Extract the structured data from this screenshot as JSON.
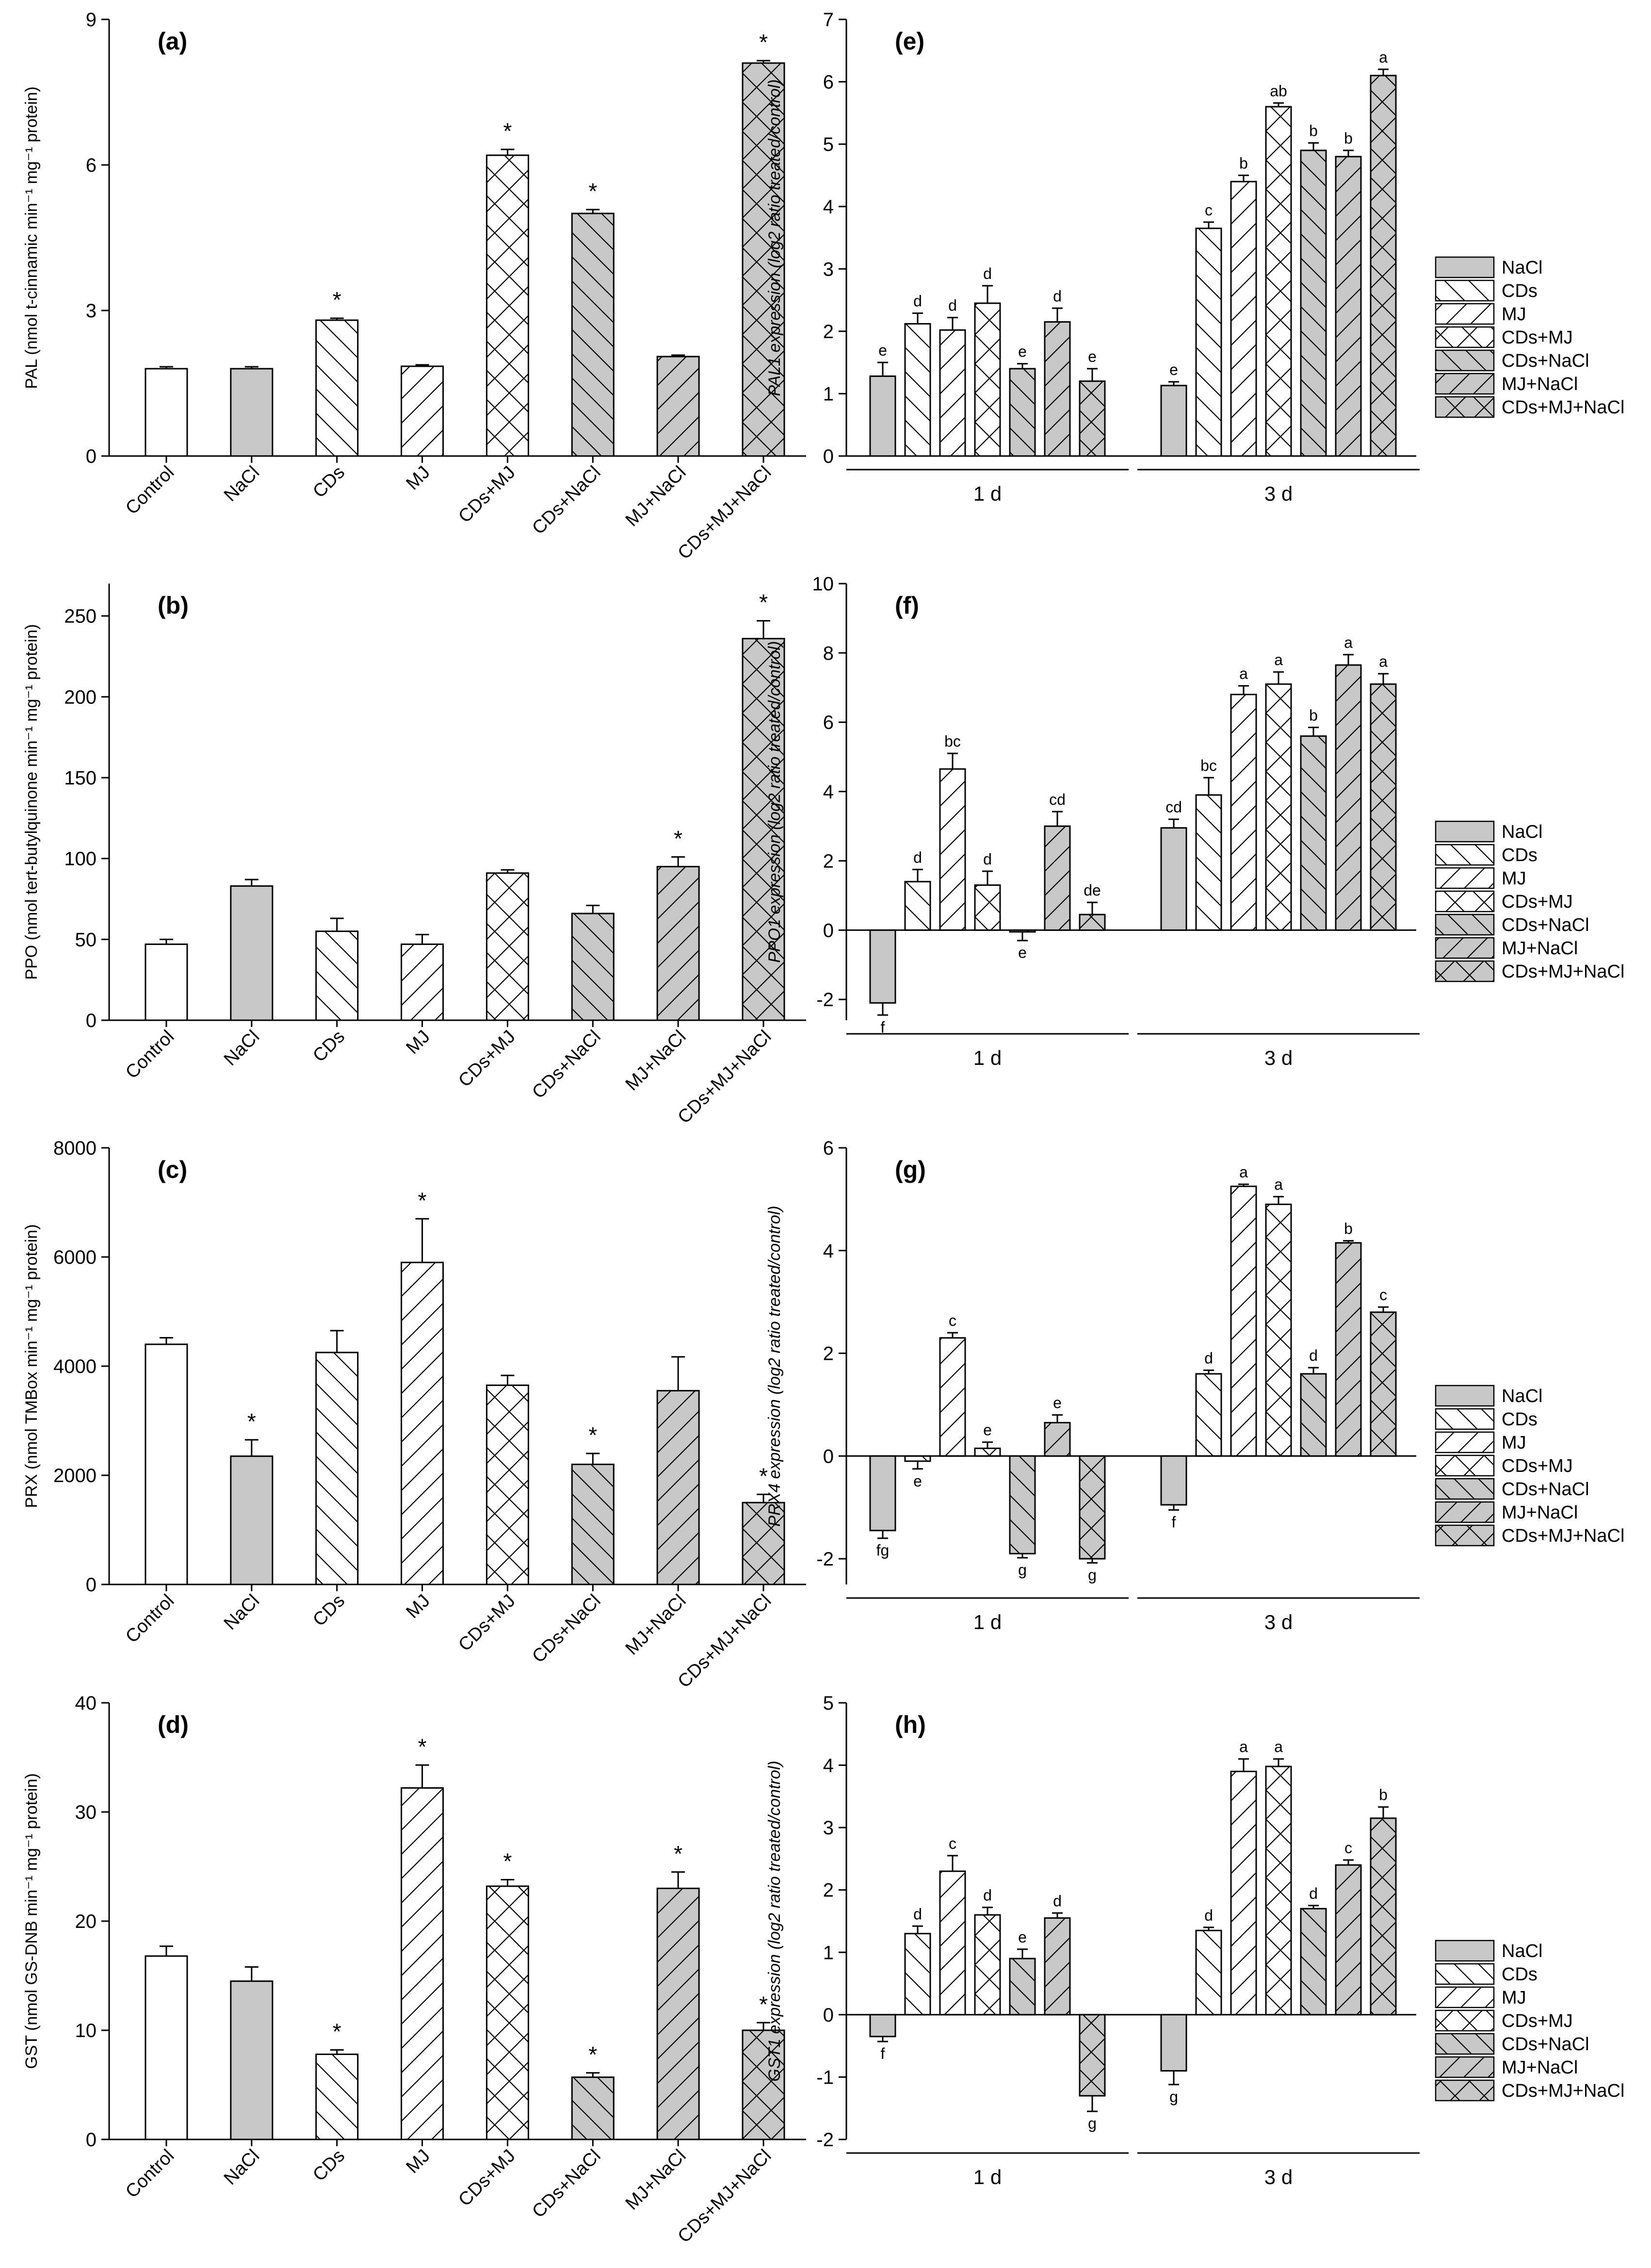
{
  "chart_data": [
    {
      "panel": "(a)",
      "type": "bar",
      "ylabel": "PAL (nmol t-cinnamic min⁻¹ mg⁻¹ protein)",
      "ylim": [
        0,
        9
      ],
      "yticks": [
        0,
        3,
        6,
        9
      ],
      "categories": [
        "Control",
        "NaCl",
        "CDs",
        "MJ",
        "CDs+MJ",
        "CDs+NaCl",
        "MJ+NaCl",
        "CDs+MJ+NaCl"
      ],
      "values": [
        1.8,
        1.8,
        2.8,
        1.85,
        6.2,
        5.0,
        2.05,
        8.1
      ],
      "errors": [
        0.04,
        0.04,
        0.04,
        0.03,
        0.12,
        0.08,
        0.03,
        0.05
      ],
      "markers": [
        "",
        "",
        "*",
        "",
        "*",
        "*",
        "",
        "*"
      ]
    },
    {
      "panel": "(b)",
      "type": "bar",
      "ylabel": "PPO (nmol tert-butylquinone min⁻¹ mg⁻¹ protein)",
      "ylim": [
        0,
        270
      ],
      "yticks": [
        0,
        50,
        100,
        150,
        200,
        250
      ],
      "categories": [
        "Control",
        "NaCl",
        "CDs",
        "MJ",
        "CDs+MJ",
        "CDs+NaCl",
        "MJ+NaCl",
        "CDs+MJ+NaCl"
      ],
      "values": [
        47,
        83,
        55,
        47,
        91,
        66,
        95,
        236
      ],
      "errors": [
        3,
        4,
        8,
        6,
        2,
        5,
        6,
        11
      ],
      "markers": [
        "",
        "",
        "",
        "",
        "",
        "",
        "*",
        "*"
      ]
    },
    {
      "panel": "(c)",
      "type": "bar",
      "ylabel": "PRX (nmol TMBox min⁻¹ mg⁻¹ protein)",
      "ylim": [
        0,
        8000
      ],
      "yticks": [
        0,
        2000,
        4000,
        6000,
        8000
      ],
      "categories": [
        "Control",
        "NaCl",
        "CDs",
        "MJ",
        "CDs+MJ",
        "CDs+NaCl",
        "MJ+NaCl",
        "CDs+MJ+NaCl"
      ],
      "values": [
        4400,
        2350,
        4250,
        5900,
        3650,
        2200,
        3550,
        1500
      ],
      "errors": [
        120,
        300,
        400,
        800,
        180,
        200,
        620,
        150
      ],
      "markers": [
        "",
        "*",
        "",
        "*",
        "",
        "*",
        "",
        "*"
      ]
    },
    {
      "panel": "(d)",
      "type": "bar",
      "ylabel": "GST (nmol GS-DNB min⁻¹ mg⁻¹ protein)",
      "ylim": [
        0,
        40
      ],
      "yticks": [
        0,
        10,
        20,
        30,
        40
      ],
      "categories": [
        "Control",
        "NaCl",
        "CDs",
        "MJ",
        "CDs+MJ",
        "CDs+NaCl",
        "MJ+NaCl",
        "CDs+MJ+NaCl"
      ],
      "values": [
        16.8,
        14.5,
        7.8,
        32.2,
        23.2,
        5.7,
        23.0,
        10.0
      ],
      "errors": [
        0.9,
        1.3,
        0.4,
        2.1,
        0.6,
        0.4,
        1.5,
        0.7
      ],
      "markers": [
        "",
        "",
        "*",
        "*",
        "*",
        "*",
        "*",
        "*"
      ]
    },
    {
      "panel": "(e)",
      "type": "bar",
      "ylabel": "PAL1 expression (log2 ratio treated/control)",
      "ylim": [
        0,
        7
      ],
      "yticks": [
        0,
        1,
        2,
        3,
        4,
        5,
        6,
        7
      ],
      "categories": [
        "1 d",
        "3 d"
      ],
      "series_names": [
        "NaCl",
        "CDs",
        "MJ",
        "CDs+MJ",
        "CDs+NaCl",
        "MJ+NaCl",
        "CDs+MJ+NaCl"
      ],
      "values": [
        [
          1.28,
          2.12,
          2.02,
          2.45,
          1.4,
          2.15,
          1.2
        ],
        [
          1.13,
          3.65,
          4.4,
          5.6,
          4.9,
          4.8,
          6.1
        ]
      ],
      "errors": [
        [
          0.22,
          0.17,
          0.2,
          0.28,
          0.08,
          0.22,
          0.2
        ],
        [
          0.06,
          0.1,
          0.1,
          0.06,
          0.12,
          0.1,
          0.1
        ]
      ],
      "letters": [
        [
          "e",
          "d",
          "d",
          "d",
          "e",
          "d",
          "e"
        ],
        [
          "e",
          "c",
          "b",
          "ab",
          "b",
          "b",
          "a"
        ]
      ]
    },
    {
      "panel": "(f)",
      "type": "bar",
      "ylabel": "PPO1 expression (log2 ratio treated/control)",
      "ylim": [
        -2.6,
        10
      ],
      "yticks": [
        -2,
        0,
        2,
        4,
        6,
        8,
        10
      ],
      "categories": [
        "1 d",
        "3 d"
      ],
      "series_names": [
        "NaCl",
        "CDs",
        "MJ",
        "CDs+MJ",
        "CDs+NaCl",
        "MJ+NaCl",
        "CDs+MJ+NaCl"
      ],
      "values": [
        [
          -2.1,
          1.4,
          4.65,
          1.3,
          -0.05,
          3.0,
          0.45
        ],
        [
          2.95,
          3.9,
          6.8,
          7.1,
          5.6,
          7.65,
          7.1
        ]
      ],
      "errors": [
        [
          0.35,
          0.35,
          0.45,
          0.4,
          0.25,
          0.42,
          0.35
        ],
        [
          0.25,
          0.5,
          0.25,
          0.35,
          0.25,
          0.3,
          0.3
        ]
      ],
      "letters": [
        [
          "f",
          "d",
          "bc",
          "d",
          "e",
          "cd",
          "de"
        ],
        [
          "cd",
          "bc",
          "a",
          "a",
          "b",
          "a",
          "a"
        ]
      ]
    },
    {
      "panel": "(g)",
      "type": "bar",
      "ylabel": "PRX4 expression (log2 ratio treated/control)",
      "ylim": [
        -2.5,
        6
      ],
      "yticks": [
        -2,
        0,
        2,
        4,
        6
      ],
      "categories": [
        "1 d",
        "3 d"
      ],
      "series_names": [
        "NaCl",
        "CDs",
        "MJ",
        "CDs+MJ",
        "CDs+NaCl",
        "MJ+NaCl",
        "CDs+MJ+NaCl"
      ],
      "values": [
        [
          -1.45,
          -0.1,
          2.3,
          0.15,
          -1.9,
          0.65,
          -2.0
        ],
        [
          -0.95,
          1.6,
          5.25,
          4.9,
          1.6,
          4.15,
          2.8
        ]
      ],
      "errors": [
        [
          0.15,
          0.15,
          0.1,
          0.12,
          0.08,
          0.15,
          0.08
        ],
        [
          0.1,
          0.07,
          0.04,
          0.15,
          0.12,
          0.04,
          0.1
        ]
      ],
      "letters": [
        [
          "fg",
          "e",
          "c",
          "e",
          "g",
          "e",
          "g"
        ],
        [
          "f",
          "d",
          "a",
          "a",
          "d",
          "b",
          "c"
        ]
      ]
    },
    {
      "panel": "(h)",
      "type": "bar",
      "ylabel": "GST1 expression (log2 ratio treated/control)",
      "ylim": [
        -2,
        5
      ],
      "yticks": [
        -2,
        -1,
        0,
        1,
        2,
        3,
        4,
        5
      ],
      "categories": [
        "1 d",
        "3 d"
      ],
      "series_names": [
        "NaCl",
        "CDs",
        "MJ",
        "CDs+MJ",
        "CDs+NaCl",
        "MJ+NaCl",
        "CDs+MJ+NaCl"
      ],
      "values": [
        [
          -0.35,
          1.3,
          2.3,
          1.6,
          0.9,
          1.55,
          -1.3
        ],
        [
          -0.9,
          1.35,
          3.9,
          3.98,
          1.7,
          2.4,
          3.15
        ]
      ],
      "errors": [
        [
          0.08,
          0.12,
          0.25,
          0.12,
          0.15,
          0.08,
          0.25
        ],
        [
          0.22,
          0.05,
          0.2,
          0.12,
          0.05,
          0.08,
          0.18
        ]
      ],
      "letters": [
        [
          "f",
          "d",
          "c",
          "d",
          "e",
          "d",
          "g"
        ],
        [
          "g",
          "d",
          "a",
          "a",
          "d",
          "c",
          "b"
        ]
      ]
    }
  ]
}
